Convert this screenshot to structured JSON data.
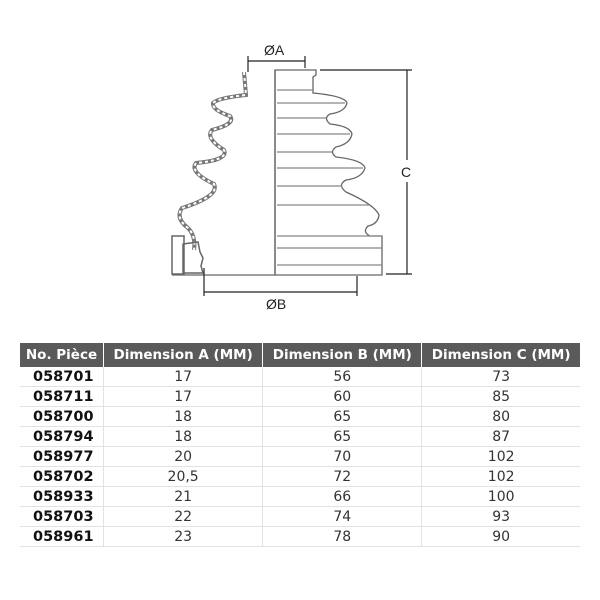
{
  "drawing": {
    "label_a": "ØA",
    "label_b": "ØB",
    "label_c": "C"
  },
  "table": {
    "headers": [
      "No. Pièce",
      "Dimension A (MM)",
      "Dimension B (MM)",
      "Dimension C (MM)"
    ],
    "rows": [
      [
        "058701",
        "17",
        "56",
        "73"
      ],
      [
        "058711",
        "17",
        "60",
        "85"
      ],
      [
        "058700",
        "18",
        "65",
        "80"
      ],
      [
        "058794",
        "18",
        "65",
        "87"
      ],
      [
        "058977",
        "20",
        "70",
        "102"
      ],
      [
        "058702",
        "20,5",
        "72",
        "102"
      ],
      [
        "058933",
        "21",
        "66",
        "100"
      ],
      [
        "058703",
        "22",
        "74",
        "93"
      ],
      [
        "058961",
        "23",
        "78",
        "90"
      ]
    ]
  }
}
